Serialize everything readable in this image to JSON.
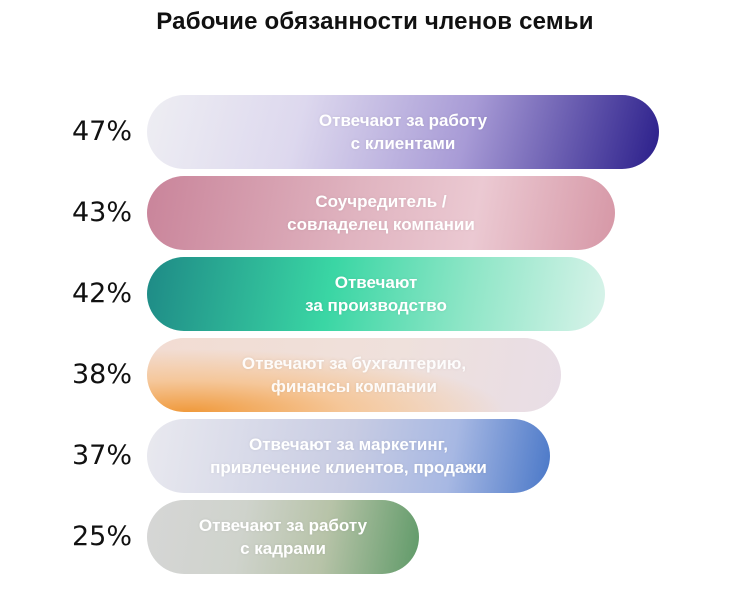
{
  "chart_data": {
    "type": "bar",
    "orientation": "horizontal",
    "title": "Рабочие обязанности членов семьи",
    "categories": [
      "Отвечают за работу\nс клиентами",
      "Соучредитель /\nсовладелец компании",
      "Отвечают\nза производство",
      "Отвечают за бухгалтерию,\nфинансы компании",
      "Отвечают за маркетинг,\nпривлечение клиентов, продажи",
      "Отвечают за работу\nс кадрами"
    ],
    "values": [
      47,
      43,
      42,
      38,
      37,
      25
    ],
    "value_labels": [
      "47%",
      "43%",
      "42%",
      "38%",
      "37%",
      "25%"
    ],
    "xlim": [
      0,
      50
    ],
    "grid": false,
    "legend": "none",
    "colors": [
      {
        "from": "#eeeef3",
        "mid": "#a89bd6",
        "to": "#2a1e8a"
      },
      {
        "from": "#c9849a",
        "mid": "#e0b4c0",
        "to": "#d697a6"
      },
      {
        "from": "#1e8a86",
        "mid": "#3ad6a4",
        "to": "#d9f3ea"
      },
      {
        "from": "#f09a3c",
        "mid": "#f2dcd2",
        "to": "#e8dde6"
      },
      {
        "from": "#e9e9ef",
        "mid": "#c8cce3",
        "to": "#4a78c8"
      },
      {
        "from": "#d6d6d6",
        "mid": "#b7c3a8",
        "to": "#5f9a68"
      }
    ]
  }
}
